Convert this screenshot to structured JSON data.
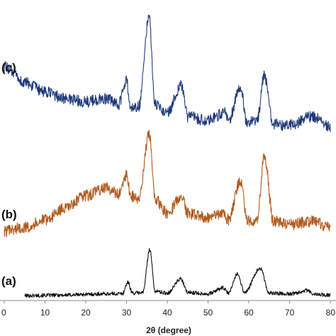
{
  "chart_data": {
    "type": "line",
    "title": "",
    "xlabel": "2θ (degree)",
    "ylabel": "",
    "xlim": [
      0,
      80
    ],
    "x_ticks": [
      "0",
      "10",
      "20",
      "30",
      "40",
      "50",
      "60",
      "70",
      "80"
    ],
    "grid": false,
    "legend": "none",
    "series": [
      {
        "name": "(a)",
        "color": "#111111",
        "baseline": 1,
        "x": [
          5,
          10,
          15,
          20,
          25,
          29,
          30.3,
          31.5,
          34,
          35.7,
          37,
          40,
          43.3,
          45,
          50,
          53.7,
          55,
          57.2,
          59,
          62.8,
          65,
          70,
          74.3,
          76,
          80
        ],
        "y": [
          1,
          1.5,
          2,
          3,
          4,
          4,
          22,
          5,
          6,
          74,
          8,
          5,
          27,
          6,
          4,
          13,
          5,
          35,
          6,
          44,
          5,
          4,
          9,
          3,
          2
        ],
        "noise": 3
      },
      {
        "name": "(b)",
        "color": "#b05a1e",
        "baseline": 102,
        "x": [
          0,
          5,
          10,
          15,
          20,
          25,
          28,
          30,
          31,
          33,
          35.6,
          37,
          40,
          43.5,
          45,
          50,
          53.8,
          55,
          58,
          59.5,
          62,
          63.8,
          66,
          70,
          75.5,
          80
        ],
        "y": [
          102,
          108,
          120,
          138,
          158,
          170,
          160,
          190,
          158,
          152,
          255,
          152,
          130,
          158,
          130,
          124,
          130,
          120,
          182,
          120,
          118,
          222,
          118,
          112,
          118,
          108
        ],
        "noise": 9
      },
      {
        "name": "(c)",
        "color": "#1f3a7a",
        "baseline": 260,
        "x": [
          0,
          5,
          10,
          15,
          20,
          25,
          28,
          30,
          31,
          33,
          35.5,
          37,
          40,
          43.4,
          45,
          50,
          54,
          55,
          58,
          59.5,
          62,
          63.8,
          66,
          70,
          75.5,
          80
        ],
        "y": [
          360,
          335,
          320,
          310,
          305,
          310,
          300,
          338,
          295,
          298,
          440,
          300,
          288,
          330,
          282,
          275,
          288,
          276,
          328,
          272,
          275,
          345,
          270,
          268,
          282,
          265
        ],
        "noise": 9
      }
    ]
  }
}
